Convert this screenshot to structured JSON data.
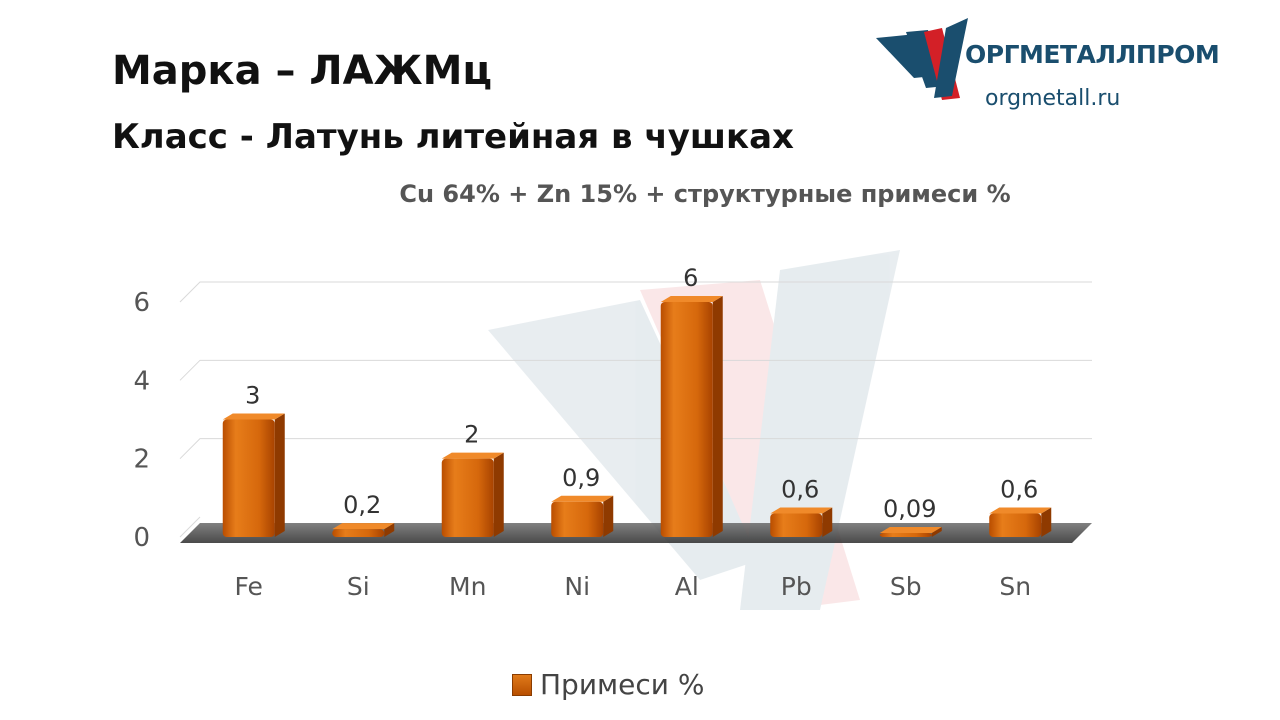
{
  "header": {
    "title_line1": "Марка – ЛАЖМц",
    "title_line2": "Класс -  Латунь литейная в чушках"
  },
  "brand": {
    "name": "ОРГМЕТАЛЛПРОМ",
    "url": "orgmetall.ru",
    "colors": {
      "blue": "#1a4e6e",
      "red": "#d32027"
    }
  },
  "chart_data": {
    "type": "bar",
    "title": "Cu 64% + Zn 15% + структурные примеси %",
    "categories": [
      "Fe",
      "Si",
      "Mn",
      "Ni",
      "Al",
      "Pb",
      "Sb",
      "Sn"
    ],
    "series": [
      {
        "name": "Примеси %",
        "values": [
          3,
          0.2,
          2,
          0.9,
          6,
          0.6,
          0.09,
          0.6
        ],
        "color": "#d96a10"
      }
    ],
    "data_labels": [
      "3",
      "0,2",
      "2",
      "0,9",
      "6",
      "0,6",
      "0,09",
      "0,6"
    ],
    "yticks": [
      "0",
      "2",
      "4",
      "6"
    ],
    "ylim": [
      0,
      6
    ],
    "grid": true,
    "legend_position": "bottom"
  }
}
